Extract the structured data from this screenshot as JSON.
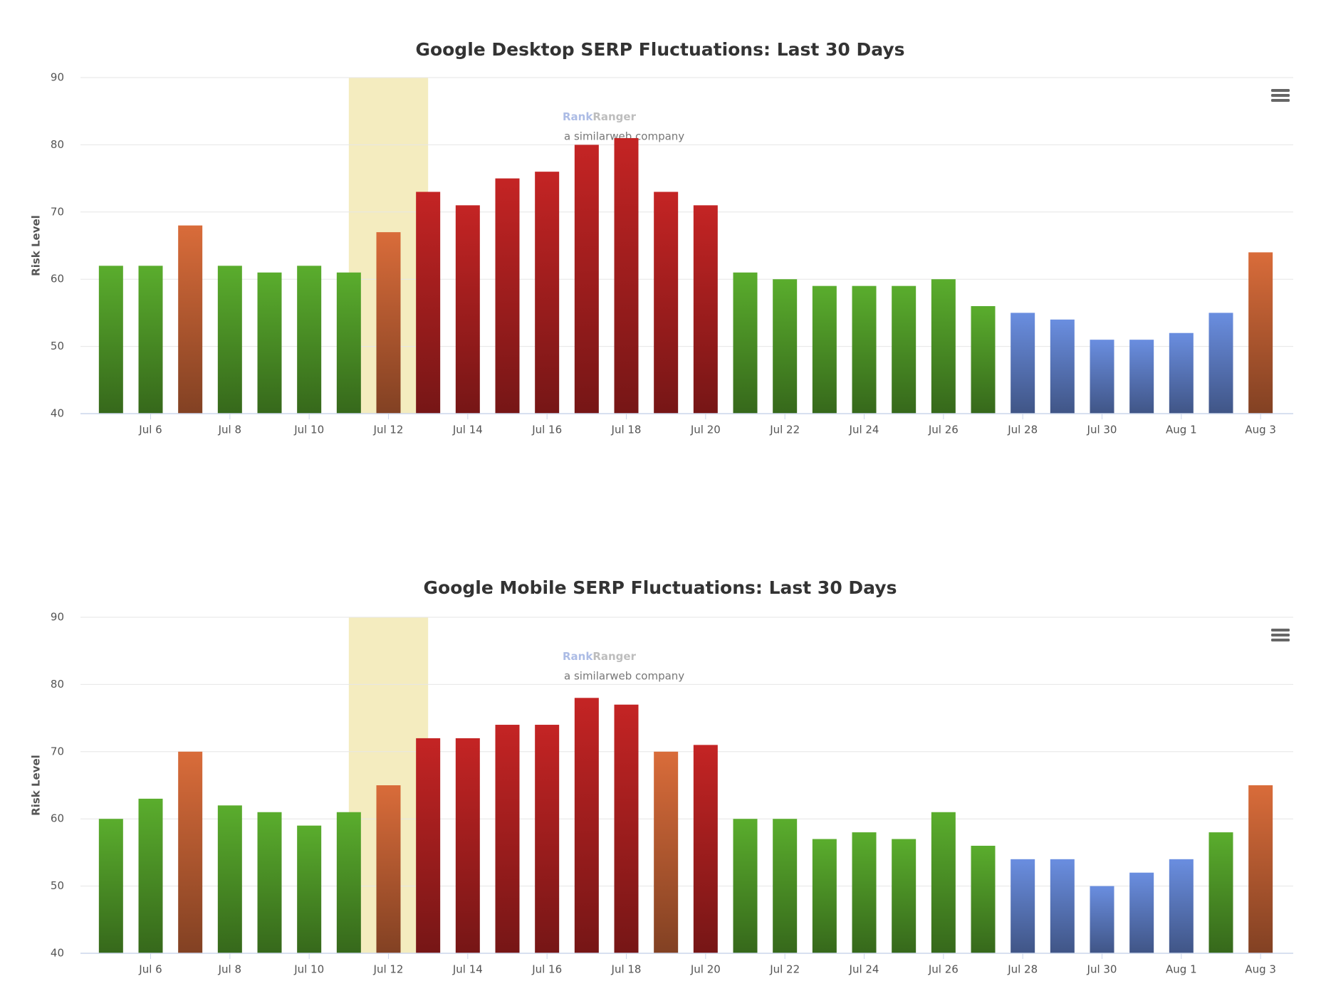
{
  "chart_data": [
    {
      "type": "bar",
      "title": "Google Desktop SERP Fluctuations: Last 30 Days",
      "y_label": "Risk Level",
      "watermark": {
        "brand_a": "Rank",
        "brand_b": "Ranger",
        "tagline": "a similarweb company"
      },
      "categories": [
        null,
        "Jul 6",
        null,
        "Jul 8",
        null,
        "Jul 10",
        null,
        "Jul 12",
        null,
        "Jul 14",
        null,
        "Jul 16",
        null,
        "Jul 18",
        null,
        "Jul 20",
        null,
        "Jul 22",
        null,
        "Jul 24",
        null,
        "Jul 26",
        null,
        "Jul 28",
        null,
        "Jul 30",
        null,
        "Aug 1",
        null,
        "Aug 3"
      ],
      "values": [
        62,
        62,
        68,
        62,
        61,
        62,
        61,
        67,
        73,
        71,
        75,
        76,
        80,
        81,
        73,
        71,
        61,
        60,
        59,
        59,
        59,
        60,
        56,
        55,
        54,
        51,
        51,
        52,
        55,
        64
      ],
      "colors": [
        "#5aad2d",
        "#5aad2d",
        "#d96c3a",
        "#5aad2d",
        "#5aad2d",
        "#5aad2d",
        "#5aad2d",
        "#d96c3a",
        "#c42424",
        "#c42424",
        "#c42424",
        "#c42424",
        "#c42424",
        "#c42424",
        "#c42424",
        "#c42424",
        "#5aad2d",
        "#5aad2d",
        "#5aad2d",
        "#5aad2d",
        "#5aad2d",
        "#5aad2d",
        "#5aad2d",
        "#6a8ee0",
        "#6a8ee0",
        "#6a8ee0",
        "#6a8ee0",
        "#6a8ee0",
        "#6a8ee0",
        "#d96c3a"
      ],
      "ylim": [
        40,
        90
      ],
      "yticks": [
        40,
        50,
        60,
        70,
        80,
        90
      ],
      "grid": true
    },
    {
      "type": "bar",
      "title": "Google Mobile SERP Fluctuations: Last 30 Days",
      "y_label": "Risk Level",
      "watermark": {
        "brand_a": "Rank",
        "brand_b": "Ranger",
        "tagline": "a similarweb company"
      },
      "categories": [
        null,
        "Jul 6",
        null,
        "Jul 8",
        null,
        "Jul 10",
        null,
        "Jul 12",
        null,
        "Jul 14",
        null,
        "Jul 16",
        null,
        "Jul 18",
        null,
        "Jul 20",
        null,
        "Jul 22",
        null,
        "Jul 24",
        null,
        "Jul 26",
        null,
        "Jul 28",
        null,
        "Jul 30",
        null,
        "Aug 1",
        null,
        "Aug 3"
      ],
      "values": [
        60,
        63,
        70,
        62,
        61,
        59,
        61,
        65,
        72,
        72,
        74,
        74,
        78,
        77,
        70,
        71,
        60,
        60,
        57,
        58,
        57,
        61,
        56,
        54,
        54,
        50,
        52,
        54,
        58,
        65
      ],
      "colors": [
        "#5aad2d",
        "#5aad2d",
        "#d96c3a",
        "#5aad2d",
        "#5aad2d",
        "#5aad2d",
        "#5aad2d",
        "#d96c3a",
        "#c42424",
        "#c42424",
        "#c42424",
        "#c42424",
        "#c42424",
        "#c42424",
        "#d96c3a",
        "#c42424",
        "#5aad2d",
        "#5aad2d",
        "#5aad2d",
        "#5aad2d",
        "#5aad2d",
        "#5aad2d",
        "#5aad2d",
        "#6a8ee0",
        "#6a8ee0",
        "#6a8ee0",
        "#6a8ee0",
        "#6a8ee0",
        "#5aad2d",
        "#d96c3a"
      ],
      "ylim": [
        40,
        90
      ],
      "yticks": [
        40,
        50,
        60,
        70,
        80,
        90
      ],
      "grid": true
    }
  ]
}
